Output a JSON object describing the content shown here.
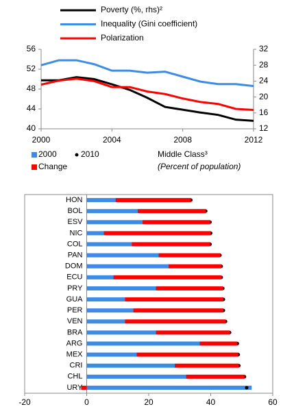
{
  "chart_data": [
    {
      "type": "line",
      "x": [
        2000,
        2001,
        2002,
        2003,
        2004,
        2005,
        2006,
        2007,
        2008,
        2009,
        2010,
        2011,
        2012
      ],
      "xlim": [
        2000,
        2012
      ],
      "xticks": [
        2000,
        2004,
        2008,
        2012
      ],
      "ylim": [
        40,
        56
      ],
      "yticks": [
        40,
        44,
        48,
        52,
        56
      ],
      "y2lim": [
        12,
        32
      ],
      "y2ticks": [
        12,
        16,
        20,
        24,
        28,
        32
      ],
      "series": [
        {
          "name": "Poverty (%, rhs)²",
          "color": "#000000",
          "axis": "y2",
          "values": [
            24.2,
            24.2,
            25.0,
            24.5,
            23.2,
            21.8,
            19.8,
            17.5,
            16.8,
            16.1,
            15.5,
            14.3,
            14.0
          ]
        },
        {
          "name": "Inequality (Gini coefficient)",
          "color": "#3c8ce6",
          "values": [
            52.8,
            53.8,
            53.8,
            53.0,
            51.7,
            51.7,
            51.3,
            51.5,
            50.5,
            49.5,
            49.0,
            49.0,
            48.6
          ]
        },
        {
          "name": "Polarization",
          "color": "#ff0000",
          "values": [
            48.9,
            49.7,
            50.1,
            49.6,
            48.4,
            48.4,
            47.5,
            47.0,
            46.1,
            45.4,
            45.0,
            44.0,
            43.8
          ]
        }
      ]
    },
    {
      "type": "hbar",
      "title": "Middle Class³",
      "subtitle": "(Percent of population)",
      "categories": [
        "HON",
        "BOL",
        "ESV",
        "NIC",
        "COL",
        "PAN",
        "DOM",
        "ECU",
        "PRY",
        "GUA",
        "PER",
        "VEN",
        "BRA",
        "ARG",
        "MEX",
        "CRI",
        "CHL",
        "URY"
      ],
      "xlim": [
        -20,
        60
      ],
      "xticks": [
        -20,
        0,
        20,
        40,
        60
      ],
      "series": [
        {
          "name": "2000",
          "color": "#3c8ce6",
          "values": [
            9.3,
            16.4,
            18.0,
            5.5,
            14.5,
            23.2,
            26.4,
            8.6,
            22.3,
            12.3,
            15.0,
            12.3,
            22.3,
            36.4,
            16.1,
            28.4,
            32.0,
            53.2
          ]
        },
        {
          "name": "2010",
          "color": "#000000",
          "marker": true,
          "values": [
            33.6,
            38.4,
            39.8,
            40.0,
            39.8,
            43.0,
            43.4,
            43.4,
            43.9,
            44.1,
            44.1,
            44.8,
            46.1,
            48.6,
            48.9,
            49.1,
            50.9,
            51.6
          ]
        },
        {
          "name": "Change",
          "color": "#ff0000",
          "values": [
            24.3,
            22.0,
            21.8,
            34.5,
            25.3,
            19.8,
            17.0,
            34.8,
            21.6,
            31.8,
            29.1,
            32.5,
            23.8,
            12.2,
            32.8,
            20.7,
            18.9,
            -1.8
          ]
        }
      ]
    }
  ]
}
